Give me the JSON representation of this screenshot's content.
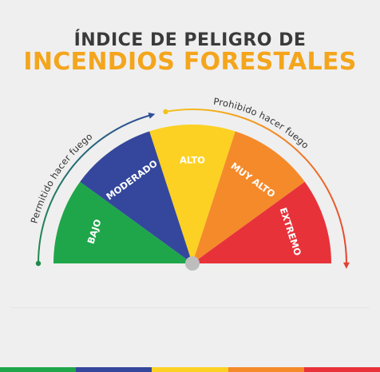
{
  "header": {
    "line1": "ÍNDICE DE PELIGRO DE",
    "line2": "INCENDIOS FORESTALES"
  },
  "arcs": {
    "left_label": "Permitido hacer fuego",
    "left_color": "#1f8a4c",
    "right_label": "Prohibido hacer fuego",
    "right_color": "#e4402f"
  },
  "gauge": {
    "center_color": "#bdbdbd",
    "segments": [
      {
        "label": "BAJO",
        "color": "#1fa64a"
      },
      {
        "label": "MODERADO",
        "color": "#34479c"
      },
      {
        "label": "ALTO",
        "color": "#fcd123"
      },
      {
        "label": "MUY ALTO",
        "color": "#f58a2a"
      },
      {
        "label": "EXTREMO",
        "color": "#e8323a"
      }
    ]
  }
}
